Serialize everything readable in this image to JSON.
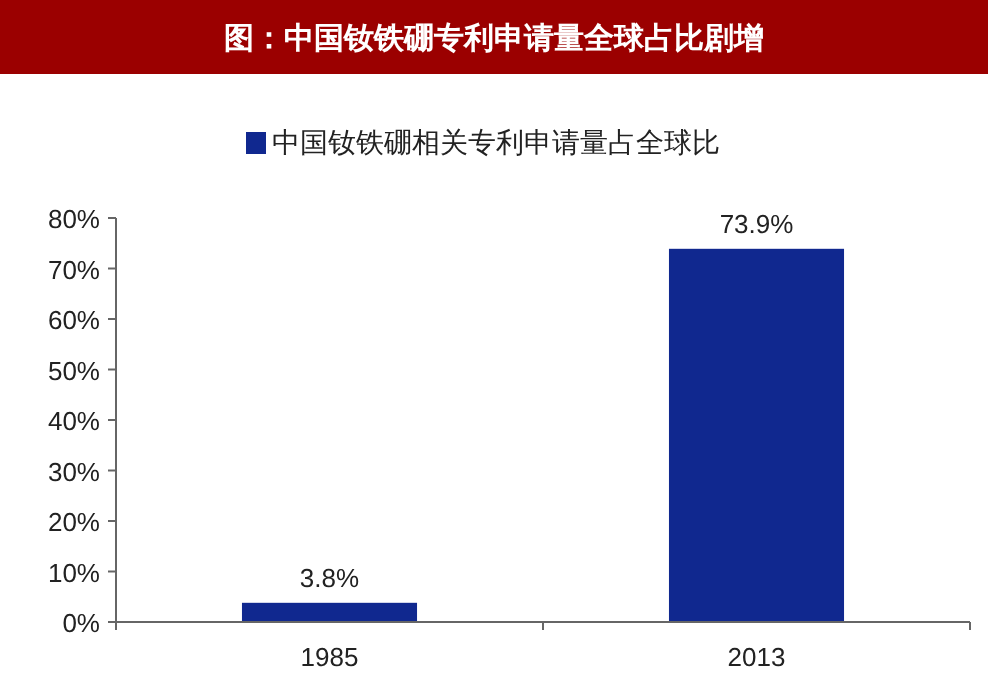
{
  "chart_data": {
    "type": "bar",
    "title": "图：中国钕铁硼专利申请量全球占比剧增",
    "categories": [
      "1985",
      "2013"
    ],
    "series": [
      {
        "name": "中国钕铁硼相关专利申请量占全球比",
        "color": "#10288f",
        "values": [
          3.8,
          73.9
        ],
        "value_labels": [
          "3.8%",
          "73.9%"
        ]
      }
    ],
    "ylim": [
      0,
      80
    ],
    "yticks": [
      {
        "value": 0,
        "label": "0%"
      },
      {
        "value": 10,
        "label": "10%"
      },
      {
        "value": 20,
        "label": "20%"
      },
      {
        "value": 30,
        "label": "30%"
      },
      {
        "value": 40,
        "label": "40%"
      },
      {
        "value": 50,
        "label": "50%"
      },
      {
        "value": 60,
        "label": "60%"
      },
      {
        "value": 70,
        "label": "70%"
      },
      {
        "value": 80,
        "label": "80%"
      }
    ],
    "legend": "top",
    "grid": false
  }
}
